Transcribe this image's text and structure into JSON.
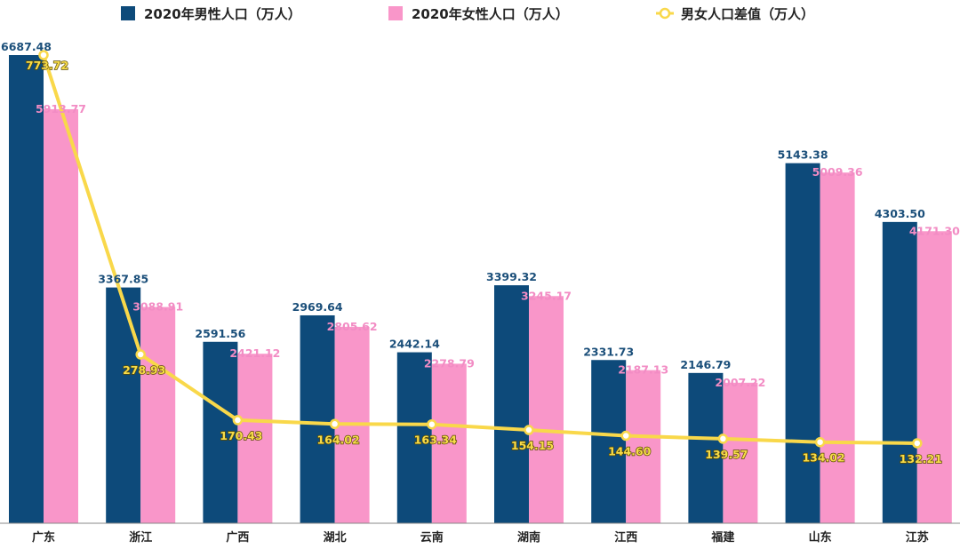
{
  "chart_data": {
    "type": "bar",
    "categories": [
      "广东",
      "浙江",
      "广西",
      "湖北",
      "云南",
      "湖南",
      "江西",
      "福建",
      "山东",
      "江苏"
    ],
    "series": [
      {
        "name": "2020年男性人口（万人）",
        "type": "bar",
        "color": "#0d4a7a",
        "values": [
          6687.48,
          3367.85,
          2591.56,
          2969.64,
          2442.14,
          3399.32,
          2331.73,
          2146.79,
          5143.38,
          4303.5
        ],
        "labels": [
          "6687.48",
          "3367.85",
          "2591.56",
          "2969.64",
          "2442.14",
          "3399.32",
          "2331.73",
          "2146.79",
          "5143.38",
          "4303.50"
        ]
      },
      {
        "name": "2020年女性人口（万人）",
        "type": "bar",
        "color": "#f996c9",
        "values": [
          5913.77,
          3088.91,
          2421.12,
          2805.62,
          2278.79,
          3245.17,
          2187.13,
          2007.22,
          5009.36,
          4171.3
        ],
        "labels": [
          "5913.77",
          "3088.91",
          "2421.12",
          "2805.62",
          "2278.79",
          "3245.17",
          "2187.13",
          "2007.22",
          "5009.36",
          "4171.30"
        ]
      },
      {
        "name": "男女人口差值（万人）",
        "type": "line",
        "color": "#f9d84a",
        "values": [
          773.72,
          278.93,
          170.43,
          164.02,
          163.34,
          154.15,
          144.6,
          139.57,
          134.02,
          132.21
        ],
        "labels": [
          "773.72",
          "278.93",
          "170.43",
          "164.02",
          "163.34",
          "154.15",
          "144.60",
          "139.57",
          "134.02",
          "132.21"
        ]
      }
    ],
    "title": "",
    "xlabel": "",
    "ylabel": "",
    "ylim_bars": [
      0,
      6687.48
    ],
    "ylim_line": [
      0,
      773.72
    ],
    "grid": false,
    "legend_position": "top"
  }
}
